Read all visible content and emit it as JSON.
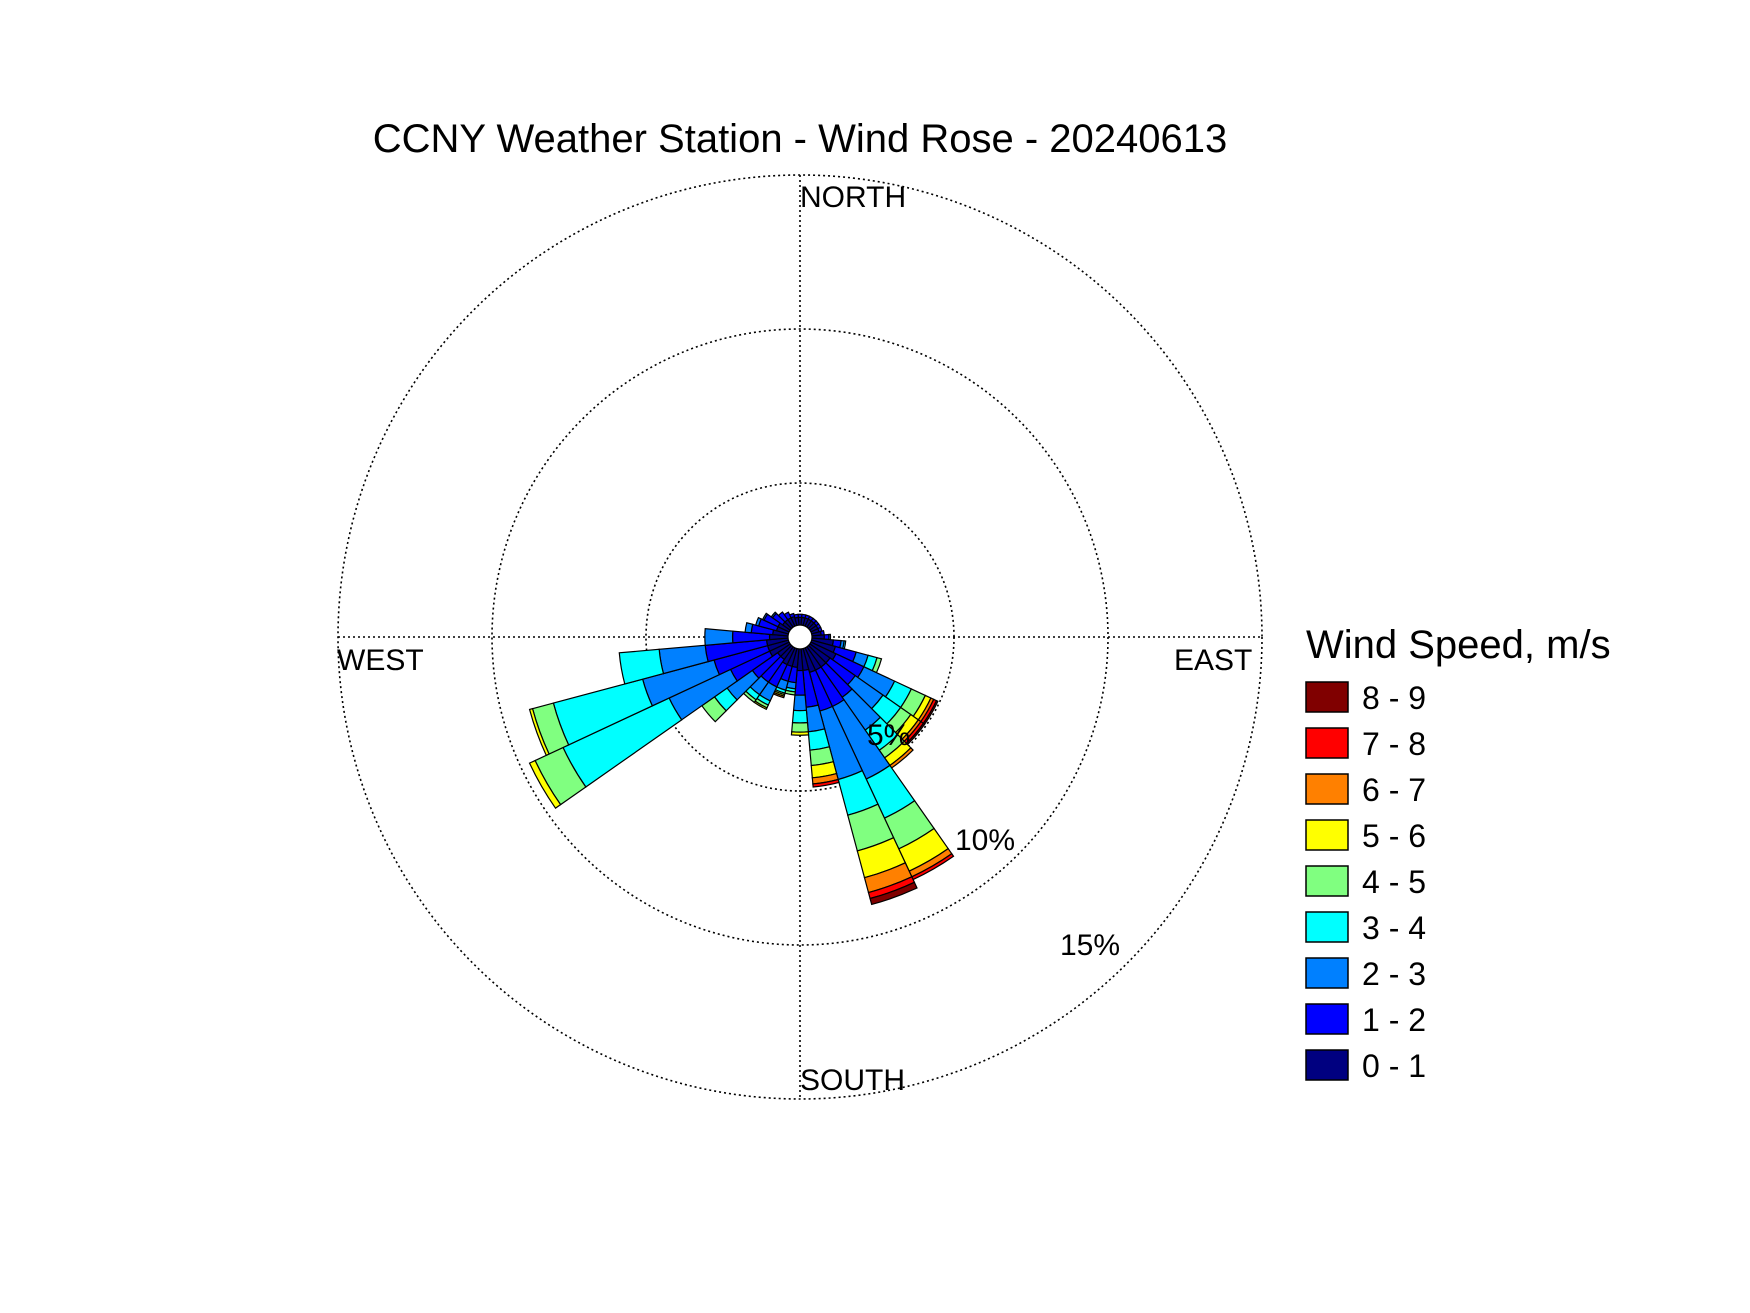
{
  "chart_data": {
    "type": "windrose",
    "title": "CCNY Weather Station - Wind Rose - 20240613",
    "directions": [
      "NORTH",
      "EAST",
      "SOUTH",
      "WEST"
    ],
    "radial_axis": {
      "unit": "%",
      "ticks": [
        5,
        10,
        15
      ],
      "max": 15,
      "tick_labels": [
        "5%",
        "10%",
        "15%"
      ]
    },
    "legend": {
      "title": "Wind Speed, m/s",
      "bins": [
        {
          "label": "8 - 9",
          "color": "#800000"
        },
        {
          "label": "7 - 8",
          "color": "#ff0000"
        },
        {
          "label": "6 - 7",
          "color": "#ff8000"
        },
        {
          "label": "5 - 6",
          "color": "#ffff00"
        },
        {
          "label": "4 - 5",
          "color": "#80ff80"
        },
        {
          "label": "3 - 4",
          "color": "#00ffff"
        },
        {
          "label": "2 - 3",
          "color": "#0080ff"
        },
        {
          "label": "1 - 2",
          "color": "#0000ff"
        },
        {
          "label": "0 - 1",
          "color": "#000080"
        }
      ]
    },
    "sector_width_deg": 10,
    "speed_bins_order": [
      "0 - 1",
      "1 - 2",
      "2 - 3",
      "3 - 4",
      "4 - 5",
      "5 - 6",
      "6 - 7",
      "7 - 8",
      "8 - 9"
    ],
    "sectors": [
      {
        "direction_deg": 0,
        "values": [
          0.25,
          0.1,
          0.0,
          0,
          0,
          0,
          0,
          0,
          0
        ]
      },
      {
        "direction_deg": 10,
        "values": [
          0.25,
          0.1,
          0.0,
          0,
          0,
          0,
          0,
          0,
          0
        ]
      },
      {
        "direction_deg": 20,
        "values": [
          0.25,
          0.1,
          0.0,
          0,
          0,
          0,
          0,
          0,
          0
        ]
      },
      {
        "direction_deg": 30,
        "values": [
          0.25,
          0.1,
          0.0,
          0,
          0,
          0,
          0,
          0,
          0
        ]
      },
      {
        "direction_deg": 40,
        "values": [
          0.25,
          0.1,
          0.0,
          0,
          0,
          0,
          0,
          0,
          0
        ]
      },
      {
        "direction_deg": 50,
        "values": [
          0.25,
          0.1,
          0.0,
          0,
          0,
          0,
          0,
          0,
          0
        ]
      },
      {
        "direction_deg": 60,
        "values": [
          0.25,
          0.1,
          0.0,
          0,
          0,
          0,
          0,
          0,
          0
        ]
      },
      {
        "direction_deg": 70,
        "values": [
          0.25,
          0.1,
          0.0,
          0,
          0,
          0,
          0,
          0,
          0
        ]
      },
      {
        "direction_deg": 80,
        "values": [
          0.3,
          0.1,
          0.0,
          0,
          0,
          0,
          0,
          0,
          0
        ]
      },
      {
        "direction_deg": 90,
        "values": [
          0.4,
          0.15,
          0.05,
          0,
          0,
          0,
          0,
          0,
          0
        ]
      },
      {
        "direction_deg": 100,
        "values": [
          0.7,
          0.25,
          0.1,
          0.05,
          0,
          0,
          0,
          0,
          0
        ]
      },
      {
        "direction_deg": 110,
        "values": [
          0.8,
          0.7,
          0.4,
          0.3,
          0.15,
          0,
          0,
          0,
          0
        ]
      },
      {
        "direction_deg": 120,
        "values": [
          0.9,
          1.0,
          1.1,
          0.6,
          0.5,
          0.2,
          0.1,
          0.1,
          0.05
        ]
      },
      {
        "direction_deg": 130,
        "values": [
          0.8,
          1.0,
          1.1,
          0.7,
          0.4,
          0.3,
          0.1,
          0.1,
          0.05
        ]
      },
      {
        "direction_deg": 140,
        "values": [
          0.8,
          1.2,
          1.3,
          0.8,
          0.3,
          0.3,
          0.1,
          0,
          0
        ]
      },
      {
        "direction_deg": 150,
        "values": [
          0.8,
          1.3,
          2.6,
          1.4,
          1.1,
          0.8,
          0.2,
          0.1,
          0
        ]
      },
      {
        "direction_deg": 160,
        "values": [
          0.8,
          1.3,
          2.3,
          1.2,
          1.2,
          0.9,
          0.5,
          0.2,
          0.2
        ]
      },
      {
        "direction_deg": 170,
        "values": [
          0.7,
          1.2,
          0.8,
          0.6,
          0.5,
          0.4,
          0.2,
          0.1,
          0
        ]
      },
      {
        "direction_deg": 180,
        "values": [
          0.7,
          0.8,
          0.5,
          0.4,
          0.3,
          0.1,
          0,
          0,
          0
        ]
      },
      {
        "direction_deg": 190,
        "values": [
          0.6,
          0.5,
          0.2,
          0.1,
          0.1,
          0,
          0,
          0,
          0
        ]
      },
      {
        "direction_deg": 200,
        "values": [
          0.6,
          0.5,
          0.3,
          0.1,
          0.05,
          0.05,
          0.05,
          0,
          0
        ]
      },
      {
        "direction_deg": 210,
        "values": [
          0.6,
          0.8,
          0.5,
          0.15,
          0.1,
          0.05,
          0,
          0,
          0
        ]
      },
      {
        "direction_deg": 220,
        "values": [
          0.5,
          0.9,
          0.5,
          0.2,
          0.1,
          0,
          0,
          0,
          0
        ]
      },
      {
        "direction_deg": 230,
        "values": [
          0.5,
          1.0,
          1.0,
          0.5,
          0.5,
          0,
          0,
          0,
          0
        ]
      },
      {
        "direction_deg": 240,
        "values": [
          0.7,
          1.4,
          2.2,
          3.8,
          1.0,
          0.2,
          0,
          0,
          0
        ]
      },
      {
        "direction_deg": 250,
        "values": [
          0.7,
          1.8,
          2.4,
          3.0,
          0.7,
          0.1,
          0,
          0,
          0
        ]
      },
      {
        "direction_deg": 260,
        "values": [
          0.7,
          2.0,
          1.5,
          1.3,
          0,
          0,
          0,
          0,
          0
        ]
      },
      {
        "direction_deg": 270,
        "values": [
          0.6,
          1.2,
          0.9,
          0,
          0,
          0,
          0,
          0,
          0
        ]
      },
      {
        "direction_deg": 280,
        "values": [
          0.5,
          0.7,
          0.2,
          0,
          0,
          0,
          0,
          0,
          0
        ]
      },
      {
        "direction_deg": 290,
        "values": [
          0.4,
          0.6,
          0.1,
          0,
          0,
          0,
          0,
          0,
          0
        ]
      },
      {
        "direction_deg": 300,
        "values": [
          0.4,
          0.5,
          0.05,
          0,
          0,
          0,
          0,
          0,
          0
        ]
      },
      {
        "direction_deg": 310,
        "values": [
          0.3,
          0.4,
          0.05,
          0,
          0,
          0,
          0,
          0,
          0
        ]
      },
      {
        "direction_deg": 320,
        "values": [
          0.3,
          0.3,
          0.0,
          0,
          0,
          0,
          0,
          0,
          0
        ]
      },
      {
        "direction_deg": 330,
        "values": [
          0.3,
          0.2,
          0.0,
          0,
          0,
          0,
          0,
          0,
          0
        ]
      },
      {
        "direction_deg": 340,
        "values": [
          0.3,
          0.1,
          0.0,
          0,
          0,
          0,
          0,
          0,
          0
        ]
      },
      {
        "direction_deg": 350,
        "values": [
          0.25,
          0.1,
          0.0,
          0,
          0,
          0,
          0,
          0,
          0
        ]
      }
    ],
    "grid": true
  }
}
